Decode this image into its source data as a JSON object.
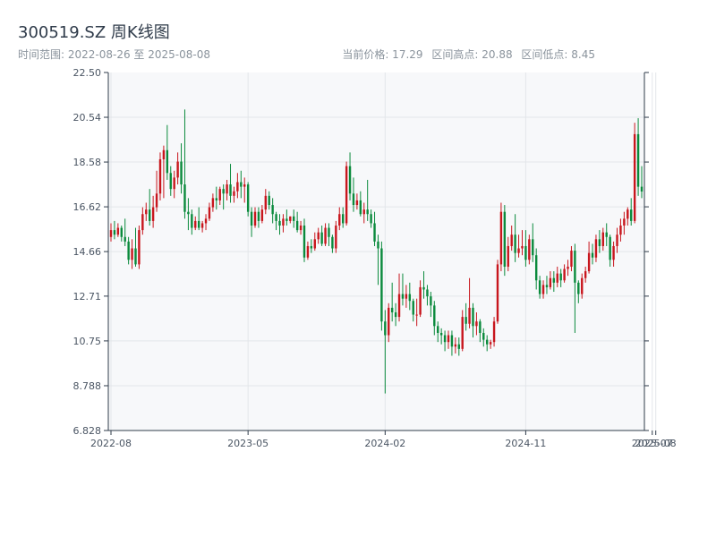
{
  "header": {
    "title": "300519.SZ 周K线图",
    "subtitle": "时间范围: 2022-08-26 至 2025-08-08",
    "current_price": "当前价格: 17.29",
    "range_high": "区间高点: 20.88",
    "range_low": "区间低点: 8.45"
  },
  "chart_data": {
    "type": "candlestick",
    "title": "300519.SZ 周K线图",
    "xlabel": "",
    "ylabel": "",
    "ylim": [
      6.828,
      22.5
    ],
    "yticks": [
      "6.828",
      "8.788",
      "10.75",
      "12.71",
      "14.66",
      "16.62",
      "18.58",
      "20.54",
      "22.50"
    ],
    "xticks": [
      {
        "label": "2022-08",
        "index": 0
      },
      {
        "label": "2023-05",
        "index": 39
      },
      {
        "label": "2024-02",
        "index": 78
      },
      {
        "label": "2024-11",
        "index": 118
      },
      {
        "label": "2025-07",
        "index": 154
      },
      {
        "label": "2025-08",
        "index": 155
      }
    ],
    "colors": {
      "up": "#c8161d",
      "down": "#0a8a3c"
    },
    "grid": true,
    "legend": "none",
    "candles": [
      [
        15.3,
        15.9,
        15.6,
        15.1
      ],
      [
        15.6,
        16.0,
        15.4,
        15.2
      ],
      [
        15.4,
        15.9,
        15.7,
        15.3
      ],
      [
        15.7,
        15.8,
        15.3,
        15.1
      ],
      [
        15.3,
        16.1,
        15.1,
        14.9
      ],
      [
        15.1,
        15.3,
        14.3,
        14.1
      ],
      [
        14.3,
        15.2,
        14.8,
        13.9
      ],
      [
        14.8,
        15.7,
        14.1,
        14.0
      ],
      [
        14.1,
        15.8,
        15.6,
        13.9
      ],
      [
        15.6,
        16.6,
        16.3,
        15.4
      ],
      [
        16.3,
        16.8,
        16.5,
        16.0
      ],
      [
        16.5,
        17.4,
        16.0,
        15.8
      ],
      [
        16.0,
        17.1,
        16.6,
        15.7
      ],
      [
        16.6,
        18.2,
        17.2,
        16.4
      ],
      [
        17.2,
        19.0,
        18.7,
        16.9
      ],
      [
        18.7,
        19.3,
        19.1,
        17.0
      ],
      [
        19.1,
        20.2,
        18.1,
        17.8
      ],
      [
        18.1,
        18.4,
        17.4,
        17.1
      ],
      [
        17.4,
        18.2,
        17.9,
        17.0
      ],
      [
        17.9,
        19.0,
        18.6,
        17.6
      ],
      [
        18.6,
        19.4,
        17.6,
        17.2
      ],
      [
        17.6,
        20.88,
        16.4,
        16.1
      ],
      [
        16.4,
        17.0,
        16.3,
        15.6
      ],
      [
        16.3,
        16.5,
        15.7,
        15.4
      ],
      [
        15.7,
        16.2,
        16.0,
        15.6
      ],
      [
        16.0,
        16.6,
        15.7,
        15.6
      ],
      [
        15.7,
        16.0,
        15.9,
        15.5
      ],
      [
        15.9,
        16.3,
        16.1,
        15.6
      ],
      [
        16.1,
        16.8,
        16.6,
        16.0
      ],
      [
        16.6,
        17.2,
        17.0,
        16.4
      ],
      [
        17.0,
        17.5,
        16.9,
        16.5
      ],
      [
        16.9,
        17.5,
        17.4,
        16.7
      ],
      [
        17.4,
        17.6,
        17.2,
        16.5
      ],
      [
        17.2,
        17.8,
        17.6,
        16.9
      ],
      [
        17.6,
        18.5,
        17.1,
        16.8
      ],
      [
        17.1,
        17.5,
        17.3,
        16.8
      ],
      [
        17.3,
        18.1,
        17.7,
        17.0
      ],
      [
        17.7,
        18.2,
        17.5,
        17.0
      ],
      [
        17.5,
        17.9,
        17.6,
        16.8
      ],
      [
        17.6,
        17.7,
        16.4,
        16.2
      ],
      [
        16.4,
        16.6,
        15.8,
        15.3
      ],
      [
        15.8,
        16.6,
        16.4,
        15.7
      ],
      [
        16.4,
        16.6,
        16.0,
        15.7
      ],
      [
        16.0,
        16.7,
        16.5,
        15.9
      ],
      [
        16.5,
        17.4,
        17.1,
        16.3
      ],
      [
        17.1,
        17.3,
        16.7,
        16.5
      ],
      [
        16.7,
        17.0,
        16.3,
        15.9
      ],
      [
        16.3,
        16.4,
        16.0,
        15.6
      ],
      [
        16.0,
        16.3,
        15.8,
        15.4
      ],
      [
        15.8,
        16.3,
        16.1,
        15.5
      ],
      [
        16.1,
        16.5,
        16.0,
        15.8
      ],
      [
        16.0,
        16.2,
        16.2,
        15.9
      ],
      [
        16.2,
        16.5,
        16.0,
        15.7
      ],
      [
        16.0,
        16.4,
        15.6,
        15.5
      ],
      [
        15.6,
        16.0,
        15.8,
        15.4
      ],
      [
        15.8,
        16.1,
        14.4,
        14.2
      ],
      [
        14.4,
        15.1,
        14.9,
        14.3
      ],
      [
        14.9,
        15.2,
        14.8,
        14.6
      ],
      [
        14.8,
        15.5,
        15.2,
        14.7
      ],
      [
        15.2,
        15.7,
        15.5,
        15.0
      ],
      [
        15.5,
        15.8,
        15.0,
        14.9
      ],
      [
        15.0,
        15.9,
        15.7,
        14.9
      ],
      [
        15.7,
        15.9,
        15.3,
        14.9
      ],
      [
        15.3,
        15.4,
        14.8,
        14.6
      ],
      [
        14.8,
        16.0,
        15.8,
        14.6
      ],
      [
        15.8,
        16.6,
        16.3,
        15.6
      ],
      [
        16.3,
        16.6,
        15.9,
        15.7
      ],
      [
        15.9,
        18.6,
        18.4,
        15.8
      ],
      [
        18.4,
        19.0,
        17.2,
        16.9
      ],
      [
        17.2,
        17.9,
        16.7,
        16.4
      ],
      [
        16.7,
        17.2,
        16.9,
        16.5
      ],
      [
        16.9,
        17.3,
        16.3,
        16.2
      ],
      [
        16.3,
        16.8,
        16.5,
        15.9
      ],
      [
        16.5,
        17.8,
        16.3,
        16.0
      ],
      [
        16.3,
        16.5,
        15.9,
        15.7
      ],
      [
        15.9,
        16.4,
        15.1,
        14.9
      ],
      [
        15.1,
        15.4,
        14.8,
        13.2
      ],
      [
        14.8,
        15.1,
        11.6,
        11.2
      ],
      [
        11.6,
        12.1,
        11.0,
        8.45
      ],
      [
        11.0,
        12.4,
        12.2,
        10.7
      ],
      [
        12.2,
        13.3,
        12.0,
        11.6
      ],
      [
        12.0,
        12.4,
        11.8,
        11.4
      ],
      [
        11.8,
        13.7,
        12.8,
        11.6
      ],
      [
        12.8,
        13.7,
        12.6,
        12.3
      ],
      [
        12.6,
        13.2,
        12.8,
        12.2
      ],
      [
        12.8,
        13.3,
        12.5,
        12.1
      ],
      [
        12.5,
        12.6,
        11.9,
        11.6
      ],
      [
        11.9,
        12.6,
        11.9,
        11.4
      ],
      [
        11.9,
        13.4,
        13.1,
        11.8
      ],
      [
        13.1,
        13.8,
        13.0,
        12.6
      ],
      [
        13.0,
        13.2,
        12.7,
        12.3
      ],
      [
        12.7,
        12.9,
        12.3,
        11.8
      ],
      [
        12.3,
        12.5,
        11.4,
        11.0
      ],
      [
        11.4,
        11.6,
        11.1,
        10.7
      ],
      [
        11.1,
        11.3,
        11.0,
        10.6
      ],
      [
        11.0,
        11.2,
        10.7,
        10.3
      ],
      [
        10.7,
        11.2,
        11.0,
        10.4
      ],
      [
        11.0,
        11.2,
        10.5,
        10.1
      ],
      [
        10.5,
        10.9,
        10.6,
        10.2
      ],
      [
        10.6,
        10.9,
        10.4,
        10.1
      ],
      [
        10.4,
        12.1,
        11.8,
        10.3
      ],
      [
        11.8,
        12.4,
        11.5,
        11.2
      ],
      [
        11.5,
        13.5,
        12.2,
        11.3
      ],
      [
        12.2,
        12.4,
        11.4,
        10.9
      ],
      [
        11.4,
        12.0,
        11.6,
        11.0
      ],
      [
        11.6,
        11.7,
        11.1,
        10.7
      ],
      [
        11.1,
        11.3,
        10.8,
        10.5
      ],
      [
        10.8,
        11.0,
        10.6,
        10.3
      ],
      [
        10.6,
        10.8,
        10.7,
        10.4
      ],
      [
        10.7,
        11.8,
        11.6,
        10.5
      ],
      [
        11.6,
        14.3,
        14.1,
        11.5
      ],
      [
        14.1,
        16.8,
        16.4,
        13.8
      ],
      [
        16.4,
        16.7,
        14.0,
        13.6
      ],
      [
        14.0,
        15.3,
        14.9,
        13.8
      ],
      [
        14.9,
        15.8,
        15.4,
        14.7
      ],
      [
        15.4,
        16.3,
        14.6,
        14.2
      ],
      [
        14.6,
        15.4,
        14.8,
        14.4
      ],
      [
        14.8,
        15.6,
        14.9,
        14.5
      ],
      [
        14.9,
        15.6,
        14.3,
        14.0
      ],
      [
        14.3,
        15.4,
        15.2,
        14.1
      ],
      [
        15.2,
        15.9,
        14.5,
        14.2
      ],
      [
        14.5,
        14.8,
        13.4,
        13.0
      ],
      [
        13.4,
        13.6,
        12.8,
        12.6
      ],
      [
        12.8,
        13.4,
        13.2,
        12.6
      ],
      [
        13.2,
        13.6,
        13.1,
        12.8
      ],
      [
        13.1,
        13.8,
        13.5,
        13.0
      ],
      [
        13.5,
        13.8,
        13.3,
        12.9
      ],
      [
        13.3,
        14.0,
        13.7,
        13.1
      ],
      [
        13.7,
        13.9,
        13.4,
        13.1
      ],
      [
        13.4,
        14.1,
        13.9,
        13.3
      ],
      [
        13.9,
        14.3,
        14.0,
        13.6
      ],
      [
        14.0,
        14.9,
        14.7,
        13.8
      ],
      [
        14.7,
        15.0,
        13.3,
        11.1
      ],
      [
        13.3,
        13.4,
        12.8,
        12.4
      ],
      [
        12.8,
        13.7,
        13.5,
        12.6
      ],
      [
        13.5,
        14.0,
        13.8,
        13.3
      ],
      [
        13.8,
        15.1,
        14.6,
        13.7
      ],
      [
        14.6,
        15.0,
        14.4,
        14.1
      ],
      [
        14.4,
        15.4,
        15.2,
        14.2
      ],
      [
        15.2,
        15.6,
        14.9,
        14.6
      ],
      [
        14.9,
        15.7,
        15.5,
        14.7
      ],
      [
        15.5,
        15.9,
        15.3,
        14.9
      ],
      [
        15.3,
        15.4,
        14.3,
        14.0
      ],
      [
        14.3,
        15.1,
        14.9,
        14.0
      ],
      [
        14.9,
        15.7,
        15.4,
        14.6
      ],
      [
        15.4,
        16.1,
        15.8,
        15.1
      ],
      [
        15.8,
        16.4,
        16.1,
        15.4
      ],
      [
        16.1,
        16.6,
        16.5,
        15.8
      ],
      [
        16.5,
        17.0,
        16.0,
        15.8
      ],
      [
        16.0,
        20.3,
        19.8,
        15.9
      ],
      [
        19.8,
        20.5,
        17.5,
        17.1
      ],
      [
        17.5,
        18.4,
        17.29,
        17.0
      ]
    ]
  }
}
